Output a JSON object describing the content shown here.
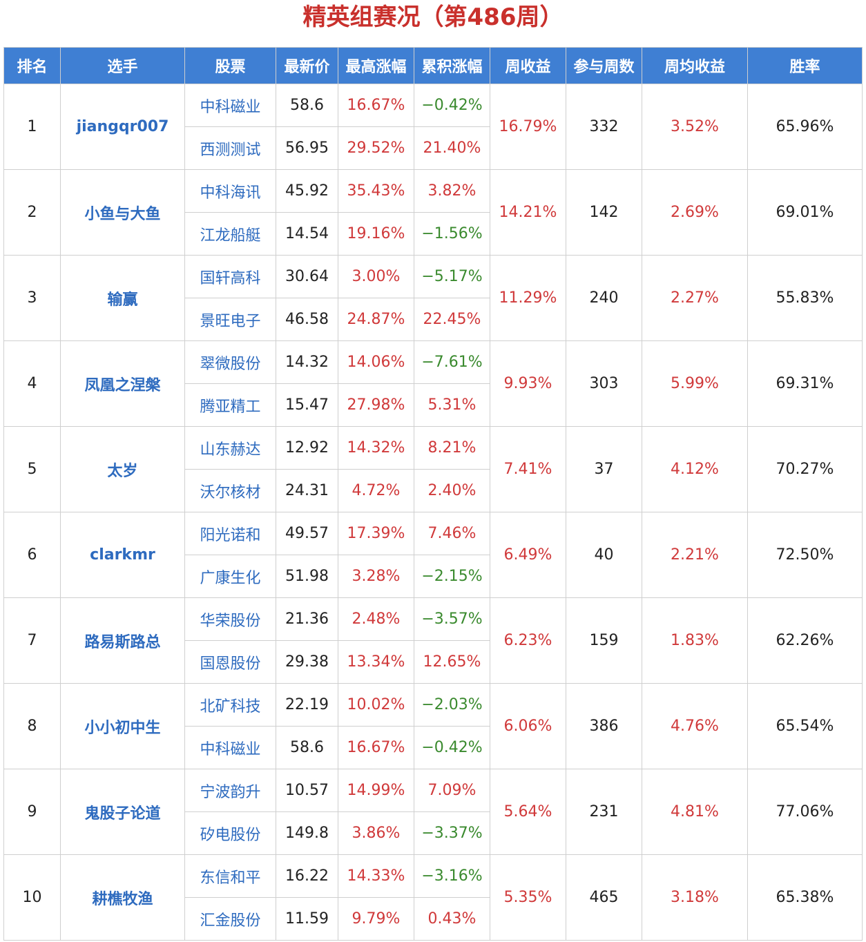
{
  "title": "精英组赛况（第486周）",
  "headers": [
    "排名",
    "选手",
    "股票",
    "最新价",
    "最高涨幅",
    "累积涨幅",
    "周收益",
    "参与周数",
    "周均收益",
    "胜率"
  ],
  "rows": [
    {
      "rank": "1",
      "player": "jiangqr007",
      "stocks": [
        {
          "name": "中科磁业",
          "price": "58.6",
          "max_gain": "16.67%",
          "cum_gain": "−0.42%"
        },
        {
          "name": "西测测试",
          "price": "56.95",
          "max_gain": "29.52%",
          "cum_gain": "21.40%"
        }
      ],
      "weekly": "16.79%",
      "weeks": "332",
      "avg": "3.52%",
      "win_rate": "65.96%"
    },
    {
      "rank": "2",
      "player": "小鱼与大鱼",
      "stocks": [
        {
          "name": "中科海讯",
          "price": "45.92",
          "max_gain": "35.43%",
          "cum_gain": "3.82%"
        },
        {
          "name": "江龙船艇",
          "price": "14.54",
          "max_gain": "19.16%",
          "cum_gain": "−1.56%"
        }
      ],
      "weekly": "14.21%",
      "weeks": "142",
      "avg": "2.69%",
      "win_rate": "69.01%"
    },
    {
      "rank": "3",
      "player": "输赢",
      "stocks": [
        {
          "name": "国轩高科",
          "price": "30.64",
          "max_gain": "3.00%",
          "cum_gain": "−5.17%"
        },
        {
          "name": "景旺电子",
          "price": "46.58",
          "max_gain": "24.87%",
          "cum_gain": "22.45%"
        }
      ],
      "weekly": "11.29%",
      "weeks": "240",
      "avg": "2.27%",
      "win_rate": "55.83%"
    },
    {
      "rank": "4",
      "player": "凤凰之涅槃",
      "stocks": [
        {
          "name": "翠微股份",
          "price": "14.32",
          "max_gain": "14.06%",
          "cum_gain": "−7.61%"
        },
        {
          "name": "腾亚精工",
          "price": "15.47",
          "max_gain": "27.98%",
          "cum_gain": "5.31%"
        }
      ],
      "weekly": "9.93%",
      "weeks": "303",
      "avg": "5.99%",
      "win_rate": "69.31%"
    },
    {
      "rank": "5",
      "player": "太岁",
      "stocks": [
        {
          "name": "山东赫达",
          "price": "12.92",
          "max_gain": "14.32%",
          "cum_gain": "8.21%"
        },
        {
          "name": "沃尔核材",
          "price": "24.31",
          "max_gain": "4.72%",
          "cum_gain": "2.40%"
        }
      ],
      "weekly": "7.41%",
      "weeks": "37",
      "avg": "4.12%",
      "win_rate": "70.27%"
    },
    {
      "rank": "6",
      "player": "clarkmr",
      "stocks": [
        {
          "name": "阳光诺和",
          "price": "49.57",
          "max_gain": "17.39%",
          "cum_gain": "7.46%"
        },
        {
          "name": "广康生化",
          "price": "51.98",
          "max_gain": "3.28%",
          "cum_gain": "−2.15%"
        }
      ],
      "weekly": "6.49%",
      "weeks": "40",
      "avg": "2.21%",
      "win_rate": "72.50%"
    },
    {
      "rank": "7",
      "player": "路易斯路总",
      "stocks": [
        {
          "name": "华荣股份",
          "price": "21.36",
          "max_gain": "2.48%",
          "cum_gain": "−3.57%"
        },
        {
          "name": "国恩股份",
          "price": "29.38",
          "max_gain": "13.34%",
          "cum_gain": "12.65%"
        }
      ],
      "weekly": "6.23%",
      "weeks": "159",
      "avg": "1.83%",
      "win_rate": "62.26%"
    },
    {
      "rank": "8",
      "player": "小小初中生",
      "stocks": [
        {
          "name": "北矿科技",
          "price": "22.19",
          "max_gain": "10.02%",
          "cum_gain": "−2.03%"
        },
        {
          "name": "中科磁业",
          "price": "58.6",
          "max_gain": "16.67%",
          "cum_gain": "−0.42%"
        }
      ],
      "weekly": "6.06%",
      "weeks": "386",
      "avg": "4.76%",
      "win_rate": "65.54%"
    },
    {
      "rank": "9",
      "player": "鬼股子论道",
      "stocks": [
        {
          "name": "宁波韵升",
          "price": "10.57",
          "max_gain": "14.99%",
          "cum_gain": "7.09%"
        },
        {
          "name": "矽电股份",
          "price": "149.8",
          "max_gain": "3.86%",
          "cum_gain": "−3.37%"
        }
      ],
      "weekly": "5.64%",
      "weeks": "231",
      "avg": "4.81%",
      "win_rate": "77.06%"
    },
    {
      "rank": "10",
      "player": "耕樵牧渔",
      "stocks": [
        {
          "name": "东信和平",
          "price": "16.22",
          "max_gain": "14.33%",
          "cum_gain": "−3.16%"
        },
        {
          "name": "汇金股份",
          "price": "11.59",
          "max_gain": "9.79%",
          "cum_gain": "0.43%"
        }
      ],
      "weekly": "5.35%",
      "weeks": "465",
      "avg": "3.18%",
      "win_rate": "65.38%"
    }
  ]
}
